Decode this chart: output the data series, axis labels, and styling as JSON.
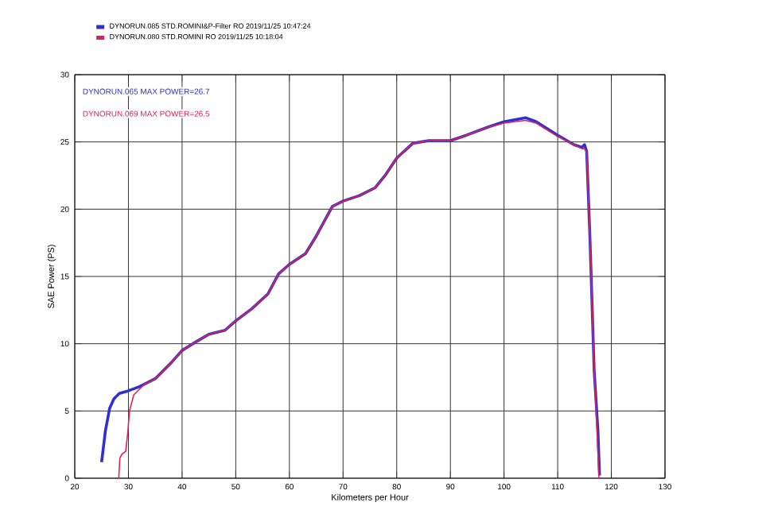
{
  "chart_data": {
    "type": "line",
    "xlabel": "Kilometers per Hour",
    "ylabel": "SAE Power (PS)",
    "annotations": [
      "DYNORUN.065  MAX POWER=26.7",
      "DYNORUN.069  MAX POWER=26.5"
    ],
    "xlim": [
      20,
      130
    ],
    "ylim": [
      0,
      30
    ],
    "xticks": [
      20,
      30,
      40,
      50,
      60,
      70,
      80,
      90,
      100,
      110,
      120,
      130
    ],
    "yticks": [
      0,
      5,
      10,
      15,
      20,
      25,
      30
    ],
    "grid": true,
    "legend": "top left",
    "marker": "none",
    "line_style": "solid",
    "series": [
      {
        "name": "DYNORUN.085   STD.ROMINI&P-Filter RO   2019/11/25 10:47:24",
        "color": "#3030d0",
        "x": [
          25,
          25.7,
          26.5,
          27.3,
          28.3,
          30,
          32,
          35,
          38,
          40,
          42,
          45,
          48,
          50,
          53,
          56,
          58,
          60,
          63,
          65,
          68,
          70,
          73,
          76,
          78,
          80,
          83,
          86,
          90,
          93,
          97,
          100,
          104,
          106,
          110,
          113,
          114.5,
          115,
          115.4,
          116,
          116.8,
          117.5,
          117.8
        ],
        "values": [
          1.2,
          3.5,
          5.2,
          5.9,
          6.3,
          6.5,
          6.8,
          7.4,
          8.6,
          9.5,
          10,
          10.7,
          11,
          11.7,
          12.6,
          13.7,
          15.2,
          15.9,
          16.7,
          18,
          20.2,
          20.6,
          21,
          21.6,
          22.6,
          23.8,
          24.9,
          25.1,
          25.1,
          25.5,
          26.1,
          26.5,
          26.8,
          26.5,
          25.5,
          24.8,
          24.6,
          24.8,
          24.3,
          18,
          8,
          3.5,
          0.2
        ]
      },
      {
        "name": "DYNORUN.080   STD.ROMINI                       RO   2019/11/25 10:18:04",
        "color": "#e0205a",
        "x": [
          28.2,
          28.4,
          28.8,
          29.5,
          29.9,
          30.2,
          31,
          32,
          33,
          35,
          38,
          40,
          42,
          45,
          48,
          50,
          53,
          56,
          58,
          60,
          63,
          65,
          68,
          70,
          73,
          76,
          78,
          80,
          83,
          86,
          90,
          93,
          97,
          100,
          104,
          106,
          110,
          113,
          114.5,
          115,
          115.4,
          116,
          116.8,
          117.5,
          117.7
        ],
        "values": [
          0,
          1.5,
          1.8,
          2,
          3.5,
          5,
          6.2,
          6.6,
          7,
          7.4,
          8.6,
          9.5,
          10,
          10.7,
          11,
          11.7,
          12.6,
          13.7,
          15.2,
          15.9,
          16.7,
          18,
          20.2,
          20.6,
          21,
          21.6,
          22.6,
          23.8,
          24.9,
          25.1,
          25.1,
          25.5,
          26.1,
          26.4,
          26.6,
          26.4,
          25.4,
          24.8,
          24.5,
          24.5,
          24.2,
          18,
          8,
          2,
          0
        ]
      }
    ]
  }
}
